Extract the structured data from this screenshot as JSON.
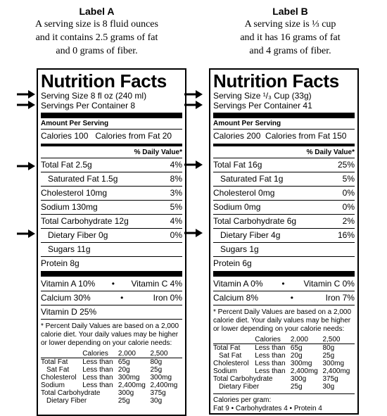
{
  "labelA": {
    "caption_title": "Label A",
    "caption_lines": [
      "A serving size is 8 fluid ounces",
      "and it contains 2.5 grams of fat",
      "and 0 grams of fiber."
    ],
    "title": "Nutrition Facts",
    "serving_size": "Serving Size 8 fl oz (240 ml)",
    "servings_per_container": "Servings Per Container 8",
    "amount_per_serving": "Amount Per Serving",
    "calories": "Calories 100",
    "calories_fat": "Calories from Fat 20",
    "dv_header": "% Daily Value*",
    "rows": [
      {
        "name": "Total Fat  2.5g",
        "pct": "4%"
      },
      {
        "name": "Saturated Fat 1.5g",
        "pct": "8%"
      },
      {
        "name": "Cholesterol 10mg",
        "pct": "3%"
      },
      {
        "name": "Sodium 130mg",
        "pct": "5%"
      },
      {
        "name": "Total Carbohydrate 12g",
        "pct": "4%"
      },
      {
        "name": "Dietary Fiber 0g",
        "pct": "0%"
      },
      {
        "name": "Sugars 11g",
        "pct": ""
      },
      {
        "name": "Protein 8g",
        "pct": ""
      }
    ],
    "vit_a": "Vitamin A 10%",
    "vit_c": "Vitamin C 4%",
    "calcium": "Calcium 30%",
    "iron": "Iron 0%",
    "vit_d": "Vitamin D 25%",
    "footnote": "* Percent Daily Values are based on a 2,000 calorie diet. Your daily values may be higher or lower depending on your calorie needs:",
    "ref_table": [
      [
        "",
        "Calories",
        "2,000",
        "2,500"
      ],
      [
        "Total Fat",
        "Less than",
        "65g",
        "80g"
      ],
      [
        "Sat Fat",
        "Less than",
        "20g",
        "25g"
      ],
      [
        "Cholesterol",
        "Less than",
        "300mg",
        "300mg"
      ],
      [
        "Sodium",
        "Less than",
        "2,400mg",
        "2,400mg"
      ],
      [
        "Total Carbohydrate",
        "",
        "300g",
        "375g"
      ],
      [
        "Dietary Fiber",
        "",
        "25g",
        "30g"
      ]
    ]
  },
  "labelB": {
    "caption_title": "Label B",
    "caption_lines": [
      "A serving size is ⅓ cup",
      "and it has 16 grams of fat",
      "and 4 grams of fiber."
    ],
    "title": "Nutrition Facts",
    "serving_size": "Serving Size ¹/₃ Cup (33g)",
    "servings_per_container": "Servings Per Container 41",
    "amount_per_serving": "Amount Per Serving",
    "calories": "Calories 200",
    "calories_fat": "Calories from Fat 150",
    "dv_header": "% Daily Value*",
    "rows": [
      {
        "name": "Total Fat  16g",
        "pct": "25%"
      },
      {
        "name": "Saturated Fat 1g",
        "pct": "5%"
      },
      {
        "name": "Cholesterol 0mg",
        "pct": "0%"
      },
      {
        "name": "Sodium 0mg",
        "pct": "0%"
      },
      {
        "name": "Total Carbohydrate 6g",
        "pct": "2%"
      },
      {
        "name": "Dietary Fiber 4g",
        "pct": "16%"
      },
      {
        "name": "Sugars 1g",
        "pct": ""
      },
      {
        "name": "Protein 6g",
        "pct": ""
      }
    ],
    "vit_a": "Vitamin A 0%",
    "vit_c": "Vitamin C 0%",
    "calcium": "Calcium 8%",
    "iron": "Iron 7%",
    "footnote": "* Percent Daily Values are based on a 2,000 calorie diet. Your daily values may be higher or lower depending on your calorie needs:",
    "ref_table": [
      [
        "",
        "Calories",
        "2,000",
        "2,500"
      ],
      [
        "Total Fat",
        "Less than",
        "65g",
        "80g"
      ],
      [
        "Sat Fat",
        "Less than",
        "20g",
        "25g"
      ],
      [
        "Cholesterol",
        "Less than",
        "300mg",
        "300mg"
      ],
      [
        "Sodium",
        "Less than",
        "2,400mg",
        "2,400mg"
      ],
      [
        "Total Carbohydrate",
        "",
        "300g",
        "375g"
      ],
      [
        "Dietary Fiber",
        "",
        "25g",
        "30g"
      ]
    ],
    "calories_per_gram_title": "Calories per gram:",
    "calories_per_gram": "Fat 9  •  Carbohydrates 4  •  Protein 4"
  }
}
